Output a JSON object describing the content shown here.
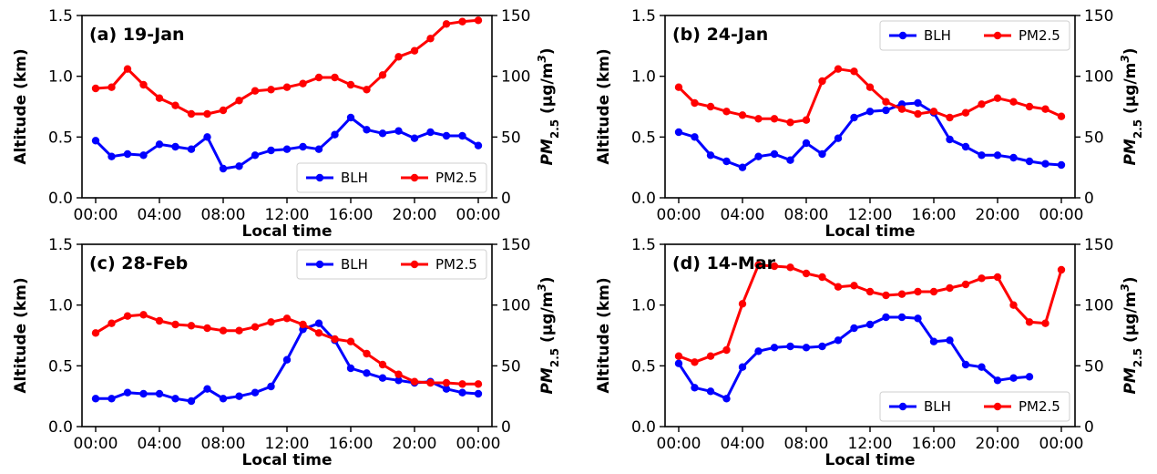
{
  "chart_data": [
    {
      "type": "line",
      "title": "(a) 19-Jan",
      "xlabel": "Local time",
      "ylabel": "Altitude (km)",
      "y2label_parts": [
        "PM",
        "2.5",
        " (μg/m",
        "3",
        ")"
      ],
      "x_hours": [
        0,
        1,
        2,
        3,
        4,
        5,
        6,
        7,
        8,
        9,
        10,
        11,
        12,
        13,
        14,
        15,
        16,
        17,
        18,
        19,
        20,
        21,
        22,
        23,
        24
      ],
      "xticks": [
        "00:00",
        "04:00",
        "08:00",
        "12:00",
        "16:00",
        "20:00",
        "00:00"
      ],
      "ylim": [
        0,
        1.5
      ],
      "yticks": [
        "0.0",
        "0.5",
        "1.0",
        "1.5"
      ],
      "y2lim": [
        0,
        150
      ],
      "y2ticks": [
        "0",
        "50",
        "100",
        "150"
      ],
      "legend": "bottom-right",
      "series": [
        {
          "name": "BLH",
          "axis": "left",
          "color": "#0000ff",
          "values": [
            0.47,
            0.34,
            0.36,
            0.35,
            0.44,
            0.42,
            0.4,
            0.5,
            0.24,
            0.26,
            0.35,
            0.39,
            0.4,
            0.42,
            0.4,
            0.52,
            0.66,
            0.56,
            0.53,
            0.55,
            0.49,
            0.54,
            0.51,
            0.51,
            0.43
          ]
        },
        {
          "name": "PM2.5",
          "axis": "right",
          "color": "#ff0000",
          "values": [
            90,
            91,
            106,
            93,
            82,
            76,
            69,
            69,
            72,
            80,
            88,
            89,
            91,
            94,
            99,
            99,
            93,
            89,
            101,
            116,
            121,
            131,
            143,
            145,
            146
          ]
        }
      ]
    },
    {
      "type": "line",
      "title": "(b) 24-Jan",
      "xlabel": "Local time",
      "ylabel": "Altitude (km)",
      "y2label_parts": [
        "PM",
        "2.5",
        " (μg/m",
        "3",
        ")"
      ],
      "x_hours": [
        0,
        1,
        2,
        3,
        4,
        5,
        6,
        7,
        8,
        9,
        10,
        11,
        12,
        13,
        14,
        15,
        16,
        17,
        18,
        19,
        20,
        21,
        22,
        23,
        24
      ],
      "xticks": [
        "00:00",
        "04:00",
        "08:00",
        "12:00",
        "16:00",
        "20:00",
        "00:00"
      ],
      "ylim": [
        0,
        1.5
      ],
      "yticks": [
        "0.0",
        "0.5",
        "1.0",
        "1.5"
      ],
      "y2lim": [
        0,
        150
      ],
      "y2ticks": [
        "0",
        "50",
        "100",
        "150"
      ],
      "legend": "top-right",
      "series": [
        {
          "name": "BLH",
          "axis": "left",
          "color": "#0000ff",
          "values": [
            0.54,
            0.5,
            0.35,
            0.3,
            0.25,
            0.34,
            0.36,
            0.31,
            0.45,
            0.36,
            0.49,
            0.66,
            0.71,
            0.72,
            0.77,
            0.78,
            0.7,
            0.48,
            0.42,
            0.35,
            0.35,
            0.33,
            0.3,
            0.28,
            0.27
          ]
        },
        {
          "name": "PM2.5",
          "axis": "right",
          "color": "#ff0000",
          "values": [
            91,
            78,
            75,
            71,
            68,
            65,
            65,
            62,
            64,
            96,
            106,
            104,
            91,
            79,
            73,
            69,
            71,
            66,
            70,
            77,
            82,
            79,
            75,
            73,
            67
          ]
        }
      ]
    },
    {
      "type": "line",
      "title": "(c) 28-Feb",
      "xlabel": "Local time",
      "ylabel": "Altitude (km)",
      "y2label_parts": [
        "PM",
        "2.5",
        " (μg/m",
        "3",
        ")"
      ],
      "x_hours": [
        0,
        1,
        2,
        3,
        4,
        5,
        6,
        7,
        8,
        9,
        10,
        11,
        12,
        13,
        14,
        15,
        16,
        17,
        18,
        19,
        20,
        21,
        22,
        23,
        24
      ],
      "xticks": [
        "00:00",
        "04:00",
        "08:00",
        "12:00",
        "16:00",
        "20:00",
        "00:00"
      ],
      "ylim": [
        0,
        1.5
      ],
      "yticks": [
        "0.0",
        "0.5",
        "1.0",
        "1.5"
      ],
      "y2lim": [
        0,
        150
      ],
      "y2ticks": [
        "0",
        "50",
        "100",
        "150"
      ],
      "legend": "top-right",
      "series": [
        {
          "name": "BLH",
          "axis": "left",
          "color": "#0000ff",
          "values": [
            0.23,
            0.23,
            0.28,
            0.27,
            0.27,
            0.23,
            0.21,
            0.31,
            0.23,
            0.25,
            0.28,
            0.33,
            0.55,
            0.8,
            0.85,
            0.71,
            0.48,
            0.44,
            0.4,
            0.38,
            0.36,
            0.37,
            0.31,
            0.28,
            0.27
          ]
        },
        {
          "name": "PM2.5",
          "axis": "right",
          "color": "#ff0000",
          "values": [
            77,
            85,
            91,
            92,
            87,
            84,
            83,
            81,
            79,
            79,
            82,
            86,
            89,
            84,
            77,
            72,
            70,
            60,
            51,
            43,
            37,
            36,
            36,
            35,
            35
          ]
        }
      ]
    },
    {
      "type": "line",
      "title": "(d) 14-Mar",
      "xlabel": "Local time",
      "ylabel": "Altitude (km)",
      "y2label_parts": [
        "PM",
        "2.5",
        " (μg/m",
        "3",
        ")"
      ],
      "x_hours": [
        0,
        1,
        2,
        3,
        4,
        5,
        6,
        7,
        8,
        9,
        10,
        11,
        12,
        13,
        14,
        15,
        16,
        17,
        18,
        19,
        20,
        21,
        22,
        23,
        24
      ],
      "xticks": [
        "00:00",
        "04:00",
        "08:00",
        "12:00",
        "16:00",
        "20:00",
        "00:00"
      ],
      "ylim": [
        0,
        1.5
      ],
      "yticks": [
        "0.0",
        "0.5",
        "1.0",
        "1.5"
      ],
      "y2lim": [
        0,
        150
      ],
      "y2ticks": [
        "0",
        "50",
        "100",
        "150"
      ],
      "legend": "bottom-right",
      "series": [
        {
          "name": "BLH",
          "axis": "left",
          "color": "#0000ff",
          "values": [
            0.52,
            0.32,
            0.29,
            0.23,
            0.49,
            0.62,
            0.65,
            0.66,
            0.65,
            0.66,
            0.71,
            0.81,
            0.84,
            0.9,
            0.9,
            0.89,
            0.7,
            0.71,
            0.51,
            0.49,
            0.38,
            0.4,
            0.41,
            null,
            null
          ]
        },
        {
          "name": "PM2.5",
          "axis": "right",
          "color": "#ff0000",
          "values": [
            58,
            53,
            58,
            63,
            101,
            133,
            132,
            131,
            126,
            123,
            115,
            116,
            111,
            108,
            109,
            111,
            111,
            114,
            117,
            122,
            123,
            100,
            86,
            85,
            129
          ]
        }
      ]
    }
  ]
}
